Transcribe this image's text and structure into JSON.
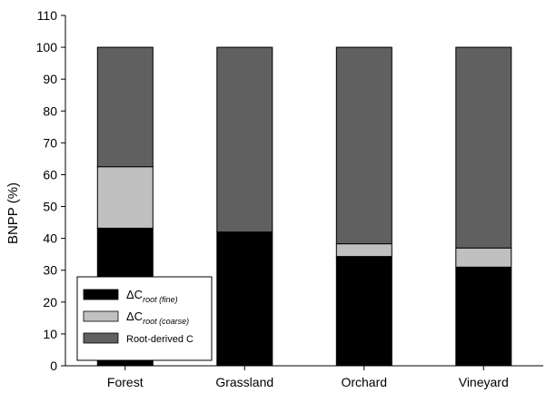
{
  "chart_data": {
    "type": "bar",
    "stacked": true,
    "ylabel": "BNPP (%)",
    "xlabel": "",
    "ylim": [
      0,
      110
    ],
    "yticks": [
      0,
      10,
      20,
      30,
      40,
      50,
      60,
      70,
      80,
      90,
      100,
      110
    ],
    "categories": [
      "Forest",
      "Grassland",
      "Orchard",
      "Vineyard"
    ],
    "series": [
      {
        "name": "ΔC root (fine)",
        "name_base": "ΔC",
        "name_sub": "root (fine)",
        "color": "#000000",
        "values": [
          43.2,
          42.0,
          34.3,
          31.0
        ]
      },
      {
        "name": "ΔC root (coarse)",
        "name_base": "ΔC",
        "name_sub": "root (coarse)",
        "color": "#c0c0c0",
        "values": [
          19.3,
          0,
          4.0,
          6.0
        ]
      },
      {
        "name": "Root-derived C",
        "name_base": "Root-derived C",
        "name_sub": "",
        "color": "#606060",
        "values": [
          37.5,
          58.0,
          61.7,
          63.0
        ]
      }
    ],
    "legend_position": "bottom-left",
    "grid": false
  }
}
